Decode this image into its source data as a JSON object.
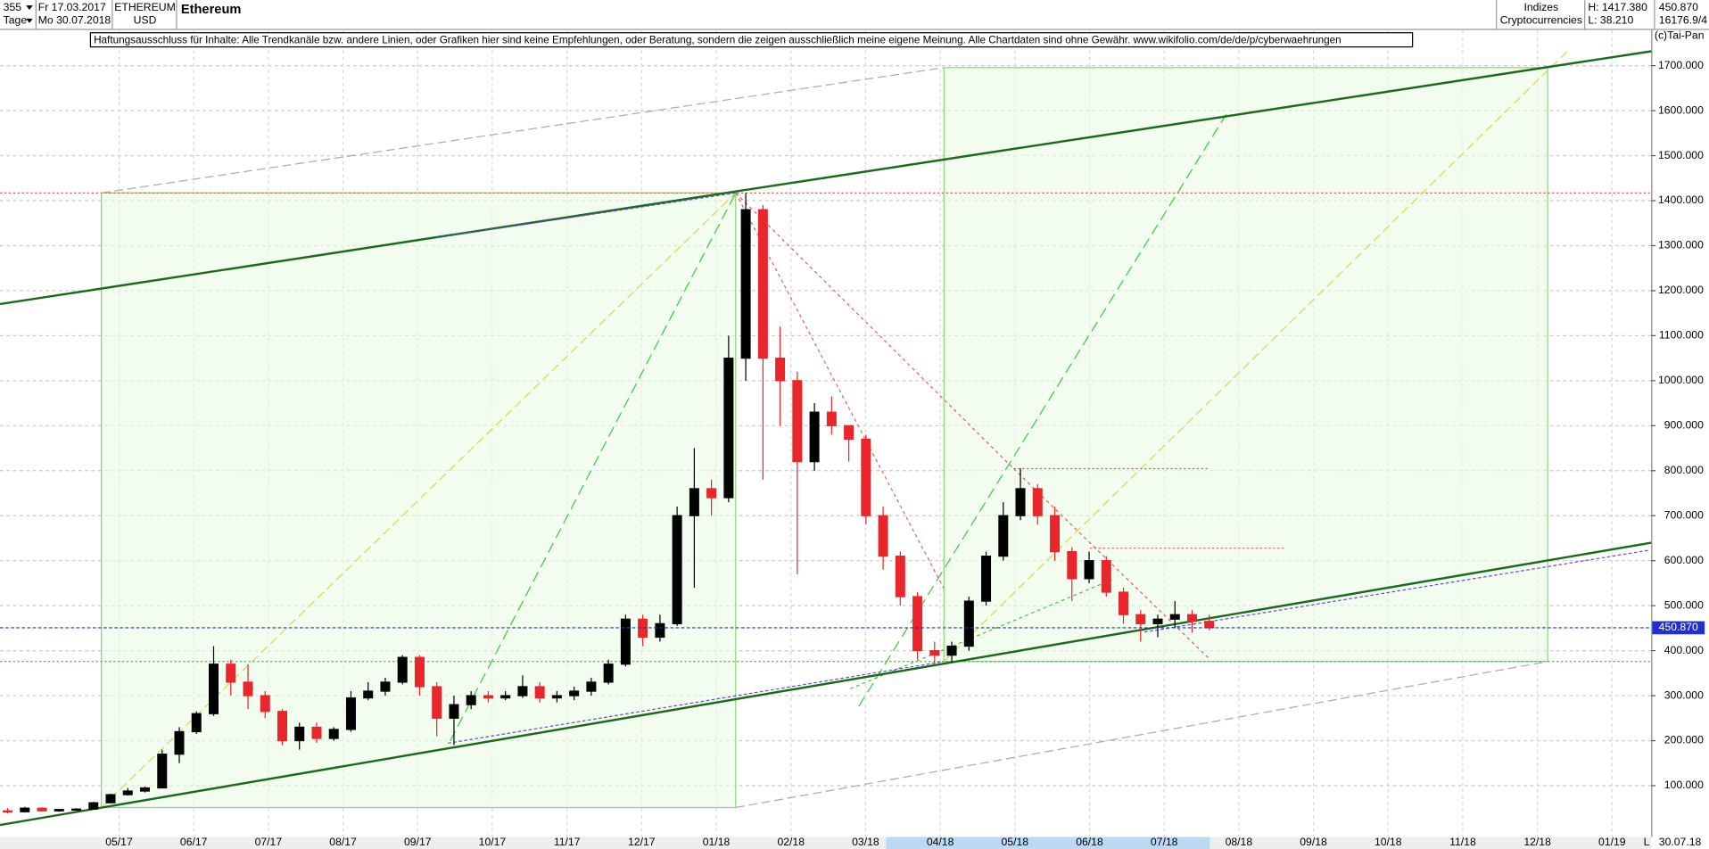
{
  "header": {
    "period": "355",
    "start": "Fr 17.03.2017",
    "unit": "Tage",
    "end": "Mo 30.07.2018",
    "symbol": "ETHEREUM",
    "currency": "USD",
    "group": "Indizes",
    "subgroup": "Cryptocurrencies",
    "high": "H: 1417.380",
    "low": "L: 38.210",
    "last": "450.870",
    "volume": "16176.9/4",
    "copyright": "(c)Tai-Pan",
    "disclaimer": "Haftungsausschluss für Inhalte: Alle Trendkanäle bzw. andere Linien, oder Grafiken hier sind keine Empfehlungen, oder Beratung, sondern die zeigen ausschließlich meine eigene Meinung. Alle Chartdaten sind ohne Gewähr.  www.wikifolio.com/de/de/p/cyberwaehrungen",
    "axis_mode": "L",
    "axis_date": "30.07.18"
  },
  "chart_data": {
    "type": "candlestick",
    "title": "Ethereum",
    "categories": [
      "05/17",
      "06/17",
      "07/17",
      "08/17",
      "09/17",
      "10/17",
      "11/17",
      "12/17",
      "01/18",
      "02/18",
      "03/18",
      "04/18",
      "05/18",
      "06/18",
      "07/18",
      "08/18",
      "09/18",
      "10/18",
      "11/18",
      "12/18",
      "01/19"
    ],
    "open": [
      44,
      42,
      50,
      44,
      47,
      48,
      62,
      80,
      88,
      95,
      170,
      220,
      260,
      370,
      330,
      300,
      265,
      200,
      230,
      205,
      225,
      295,
      310,
      330,
      385,
      320,
      250,
      280,
      300,
      295,
      300,
      320,
      295,
      300,
      310,
      330,
      370,
      470,
      430,
      460,
      700,
      760,
      740,
      1050,
      1380,
      1050,
      1000,
      820,
      930,
      900,
      870,
      700,
      610,
      520,
      400,
      390,
      410,
      510,
      610,
      700,
      760,
      700,
      620,
      560,
      600,
      530,
      480,
      460,
      470,
      480,
      465
    ],
    "high": [
      50,
      53,
      52,
      48,
      50,
      64,
      82,
      95,
      98,
      180,
      230,
      265,
      410,
      380,
      370,
      310,
      270,
      240,
      240,
      230,
      310,
      330,
      340,
      390,
      390,
      330,
      300,
      310,
      310,
      310,
      345,
      330,
      310,
      320,
      340,
      380,
      480,
      480,
      480,
      720,
      850,
      780,
      1100,
      1417,
      1390,
      1120,
      1020,
      950,
      965,
      900,
      880,
      720,
      620,
      530,
      420,
      420,
      520,
      620,
      730,
      805,
      770,
      720,
      630,
      620,
      610,
      540,
      490,
      480,
      510,
      490,
      480
    ],
    "low": [
      38,
      41,
      42,
      42,
      45,
      47,
      62,
      78,
      85,
      94,
      150,
      215,
      255,
      300,
      270,
      250,
      190,
      180,
      195,
      200,
      220,
      290,
      300,
      325,
      300,
      210,
      190,
      270,
      285,
      290,
      295,
      285,
      285,
      290,
      300,
      325,
      365,
      410,
      420,
      455,
      540,
      700,
      730,
      1000,
      780,
      900,
      570,
      800,
      880,
      820,
      680,
      580,
      500,
      380,
      370,
      375,
      400,
      500,
      600,
      690,
      680,
      600,
      510,
      550,
      520,
      460,
      420,
      430,
      450,
      440,
      445
    ],
    "close": [
      42,
      50,
      44,
      47,
      48,
      62,
      80,
      88,
      95,
      170,
      220,
      260,
      370,
      330,
      300,
      265,
      200,
      230,
      205,
      225,
      295,
      310,
      330,
      385,
      320,
      250,
      280,
      300,
      295,
      300,
      320,
      295,
      300,
      310,
      330,
      370,
      470,
      430,
      460,
      700,
      760,
      740,
      1050,
      1380,
      1050,
      1000,
      820,
      930,
      900,
      870,
      700,
      610,
      520,
      400,
      390,
      410,
      510,
      610,
      700,
      760,
      700,
      620,
      560,
      600,
      530,
      480,
      460,
      470,
      480,
      465,
      450.87
    ],
    "up_color": "#000000",
    "down_color": "#e8262b",
    "ylim": [
      -14,
      1778
    ],
    "yticks": [
      {
        "value": 100,
        "label": "100.000"
      },
      {
        "value": 200,
        "label": "200.000"
      },
      {
        "value": 300,
        "label": "300.000"
      },
      {
        "value": 400,
        "label": "400.000"
      },
      {
        "value": 500,
        "label": "500.000"
      },
      {
        "value": 600,
        "label": "600.000"
      },
      {
        "value": 700,
        "label": "700.000"
      },
      {
        "value": 800,
        "label": "800.000"
      },
      {
        "value": 900,
        "label": "900.000"
      },
      {
        "value": 1000,
        "label": "1000.000"
      },
      {
        "value": 1100,
        "label": "1100.000"
      },
      {
        "value": 1200,
        "label": "1200.000"
      },
      {
        "value": 1300,
        "label": "1300.000"
      },
      {
        "value": 1400,
        "label": "1400.000"
      },
      {
        "value": 1500,
        "label": "1500.000"
      },
      {
        "value": 1600,
        "label": "1600.000"
      },
      {
        "value": 1700,
        "label": "1700.000"
      }
    ],
    "last_price": {
      "value": 450.87,
      "label": "450.870"
    },
    "grid": true
  }
}
